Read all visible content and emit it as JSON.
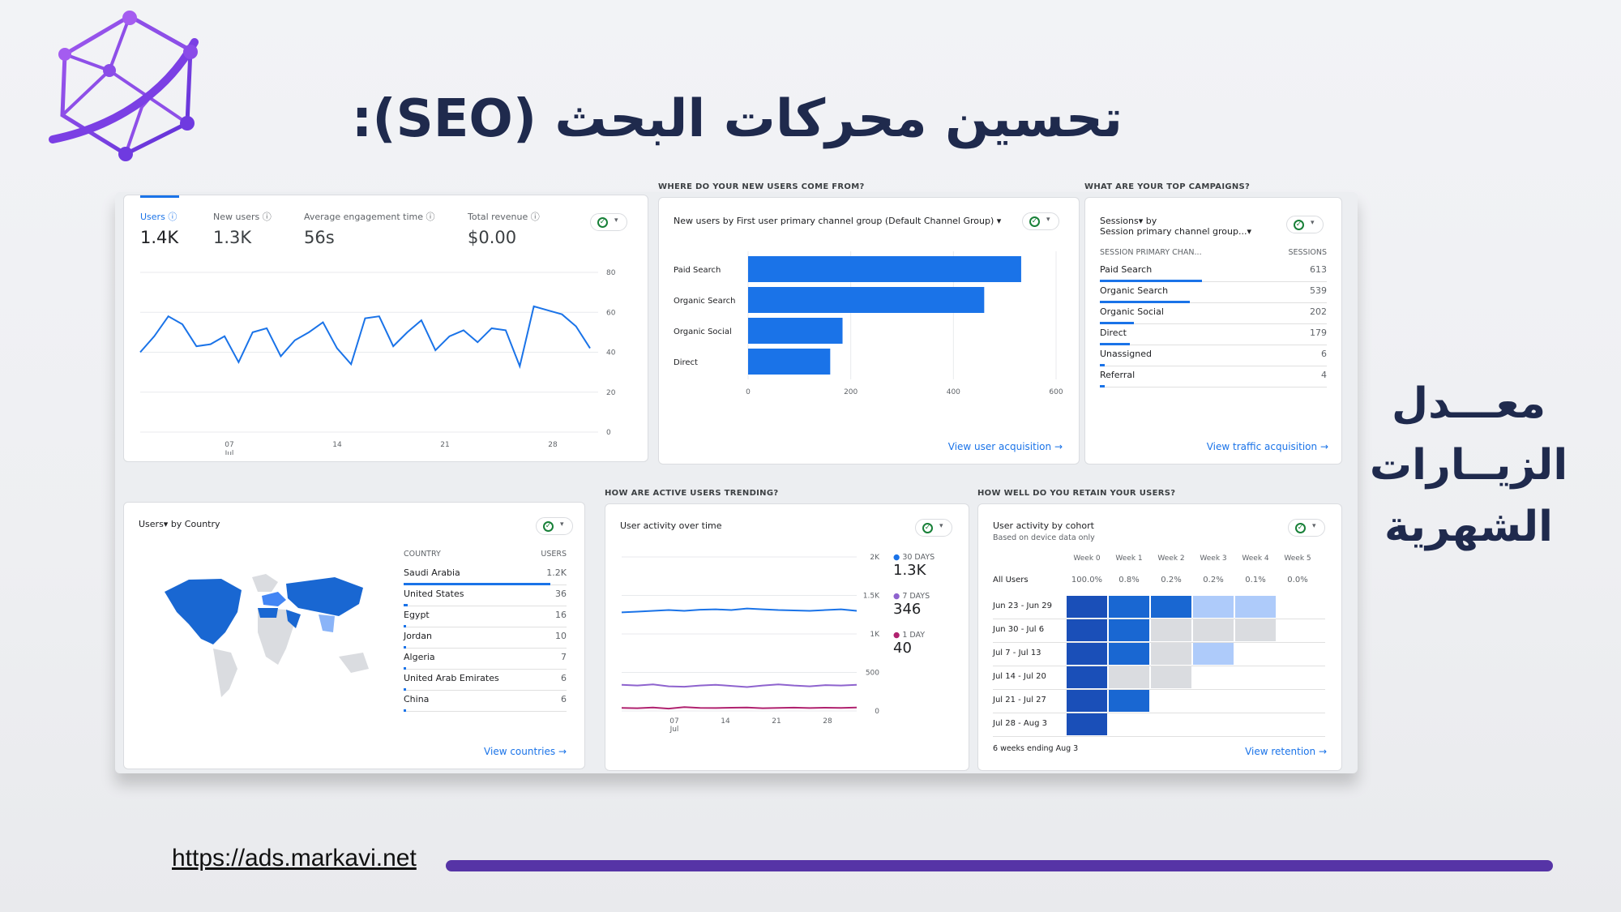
{
  "title": "تحسين محركات البحث (SEO):",
  "side_caption": [
    "معـــدل",
    "الزيــارات",
    "الشهرية"
  ],
  "footer_url": "https://ads.markavi.net",
  "colors": {
    "brand_purple": "#5634a6",
    "title_navy": "#1f2a4d",
    "chart_blue": "#1a73e8",
    "bar_blue": "#1967d2"
  },
  "overview": {
    "metrics": [
      {
        "label": "Users",
        "value": "1.4K"
      },
      {
        "label": "New users",
        "value": "1.3K"
      },
      {
        "label": "Average engagement time",
        "value": "56s"
      },
      {
        "label": "Total revenue",
        "value": "$0.00"
      }
    ],
    "chart_data": {
      "type": "line",
      "x_tick_labels": [
        "07\nJul",
        "14",
        "21",
        "28"
      ],
      "y_ticks": [
        0,
        20,
        40,
        60,
        80
      ],
      "ylim": [
        0,
        80
      ],
      "series": [
        {
          "values": [
            40,
            48,
            58,
            54,
            43,
            44,
            48,
            35,
            50,
            52,
            38,
            46,
            50,
            55,
            42,
            34,
            57,
            58,
            43,
            50,
            56,
            41,
            48,
            51,
            45,
            52,
            51,
            33,
            63,
            61,
            59,
            53,
            42
          ]
        }
      ]
    }
  },
  "acquisition": {
    "section_title": "WHERE DO YOUR NEW USERS COME FROM?",
    "chart_title": "New users by First user primary channel group (Default Channel Group)",
    "link": "View user acquisition",
    "chart_data": {
      "type": "bar",
      "orientation": "horizontal",
      "categories": [
        "Paid Search",
        "Organic Search",
        "Organic Social",
        "Direct"
      ],
      "values": [
        532,
        460,
        184,
        160
      ],
      "x_ticks": [
        "0",
        "200",
        "400",
        "600"
      ],
      "xlim": [
        0,
        600
      ]
    }
  },
  "campaigns": {
    "section_title": "WHAT ARE YOUR TOP CAMPAIGNS?",
    "title_line1": "Sessions▾ by",
    "title_line2": "Session primary channel group...▾",
    "col_left": "SESSION PRIMARY CHAN...",
    "col_right": "SESSIONS",
    "rows": [
      {
        "name": "Paid Search",
        "value": "613"
      },
      {
        "name": "Organic Search",
        "value": "539"
      },
      {
        "name": "Organic Social",
        "value": "202"
      },
      {
        "name": "Direct",
        "value": "179"
      },
      {
        "name": "Unassigned",
        "value": "6"
      },
      {
        "name": "Referral",
        "value": "4"
      }
    ],
    "link": "View traffic acquisition"
  },
  "country": {
    "title": "Users▾ by Country",
    "col_left": "COUNTRY",
    "col_right": "USERS",
    "rows": [
      {
        "name": "Saudi Arabia",
        "value": "1.2K"
      },
      {
        "name": "United States",
        "value": "36"
      },
      {
        "name": "Egypt",
        "value": "16"
      },
      {
        "name": "Jordan",
        "value": "10"
      },
      {
        "name": "Algeria",
        "value": "7"
      },
      {
        "name": "United Arab Emirates",
        "value": "6"
      },
      {
        "name": "China",
        "value": "6"
      }
    ],
    "link": "View countries"
  },
  "activity": {
    "section_title": "HOW ARE ACTIVE USERS TRENDING?",
    "chart_title": "User activity over time",
    "legend": [
      {
        "label": "30 DAYS",
        "value": "1.3K"
      },
      {
        "label": "7 DAYS",
        "value": "346"
      },
      {
        "label": "1 DAY",
        "value": "40"
      }
    ],
    "y_ticks": [
      "2K",
      "1.5K",
      "1K",
      "500",
      "0"
    ],
    "x_ticks": [
      "07\nJul",
      "14",
      "21",
      "28"
    ]
  },
  "retention": {
    "section_title": "HOW WELL DO YOU RETAIN YOUR USERS?",
    "title": "User activity by cohort",
    "subtitle": "Based on device data only",
    "weeks": [
      "Week 0",
      "Week 1",
      "Week 2",
      "Week 3",
      "Week 4",
      "Week 5"
    ],
    "all_users": [
      "100.0%",
      "0.8%",
      "0.2%",
      "0.2%",
      "0.1%",
      "0.0%"
    ],
    "cohorts": [
      {
        "label": "Jun 23 - Jun 29",
        "cells": [
          4,
          3,
          3,
          1,
          1,
          -1
        ]
      },
      {
        "label": "Jun 30 - Jul 6",
        "cells": [
          4,
          3,
          0,
          0,
          0,
          -1
        ]
      },
      {
        "label": "Jul 7 - Jul 13",
        "cells": [
          4,
          3,
          0,
          1,
          -1,
          -1
        ]
      },
      {
        "label": "Jul 14 - Jul 20",
        "cells": [
          4,
          0,
          0,
          -1,
          -1,
          -1
        ]
      },
      {
        "label": "Jul 21 - Jul 27",
        "cells": [
          4,
          3,
          -1,
          -1,
          -1,
          -1
        ]
      },
      {
        "label": "Jul 28 - Aug 3",
        "cells": [
          4,
          -1,
          -1,
          -1,
          -1,
          -1
        ]
      }
    ],
    "footnote": "6 weeks ending Aug 3",
    "link": "View retention"
  }
}
